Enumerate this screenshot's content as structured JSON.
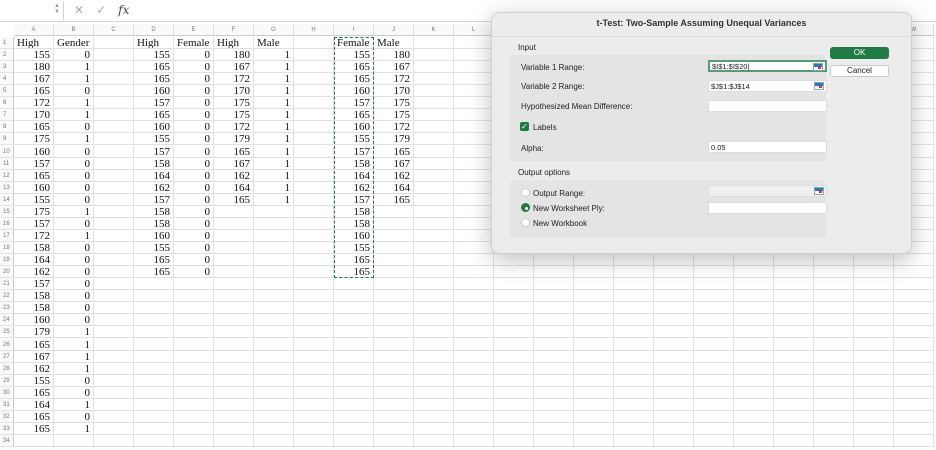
{
  "formula_bar": {
    "name_box": "",
    "cancel_icon": "✕",
    "enter_icon": "✓",
    "fx_label": "fx",
    "formula": ""
  },
  "sheet": {
    "columns": [
      "A",
      "B",
      "C",
      "D",
      "E",
      "F",
      "G",
      "H",
      "I",
      "J",
      "K",
      "L",
      "M",
      "N",
      "O",
      "P",
      "Q",
      "R",
      "S",
      "T",
      "U",
      "V",
      "W"
    ],
    "row_count": 34,
    "data": {
      "A": [
        "High",
        155,
        180,
        167,
        165,
        172,
        170,
        165,
        175,
        160,
        157,
        165,
        160,
        155,
        175,
        157,
        172,
        158,
        164,
        162,
        157,
        158,
        158,
        160,
        179,
        165,
        167,
        162,
        155,
        165,
        164,
        165,
        165
      ],
      "B": [
        "Gender",
        0,
        1,
        1,
        0,
        1,
        1,
        0,
        1,
        0,
        0,
        0,
        0,
        0,
        1,
        0,
        1,
        0,
        0,
        0,
        0,
        0,
        0,
        0,
        1,
        1,
        1,
        1,
        0,
        0,
        1,
        0,
        1
      ],
      "D": [
        "High",
        155,
        165,
        165,
        160,
        157,
        165,
        160,
        155,
        157,
        158,
        164,
        162,
        157,
        158,
        158,
        160,
        155,
        165,
        165
      ],
      "E": [
        "Female",
        0,
        0,
        0,
        0,
        0,
        0,
        0,
        0,
        0,
        0,
        0,
        0,
        0,
        0,
        0,
        0,
        0,
        0,
        0
      ],
      "F": [
        "High",
        180,
        167,
        172,
        170,
        175,
        175,
        172,
        179,
        165,
        167,
        162,
        164,
        165
      ],
      "G": [
        "Male",
        1,
        1,
        1,
        1,
        1,
        1,
        1,
        1,
        1,
        1,
        1,
        1,
        1
      ],
      "I": [
        "Female",
        155,
        165,
        165,
        160,
        157,
        165,
        160,
        155,
        157,
        158,
        164,
        162,
        157,
        158,
        158,
        160,
        155,
        165,
        165
      ],
      "J": [
        "Male",
        180,
        167,
        172,
        170,
        175,
        175,
        172,
        179,
        165,
        167,
        162,
        164,
        165
      ]
    },
    "copy_marquee_range": "I1:I20"
  },
  "dialog": {
    "title": "t-Test: Two-Sample Assuming Unequal Variances",
    "input_section": "Input",
    "var1_label": "Variable 1 Range:",
    "var1_value": "$I$1:$I$20",
    "var2_label": "Variable 2 Range:",
    "var2_value": "$J$1:$J$14",
    "hyp_label": "Hypothesized Mean Difference:",
    "hyp_value": "",
    "labels_label": "Labels",
    "labels_checked": true,
    "alpha_label": "Alpha:",
    "alpha_value": "0.05",
    "output_section": "Output options",
    "output_range_label": "Output Range:",
    "output_range_value": "",
    "new_ply_label": "New Worksheet Ply:",
    "new_ply_value": "",
    "new_workbook_label": "New Workbook",
    "selected_output": "New Worksheet Ply",
    "ok_label": "OK",
    "cancel_label": "Cancel",
    "accent_color": "#1f7a45"
  }
}
